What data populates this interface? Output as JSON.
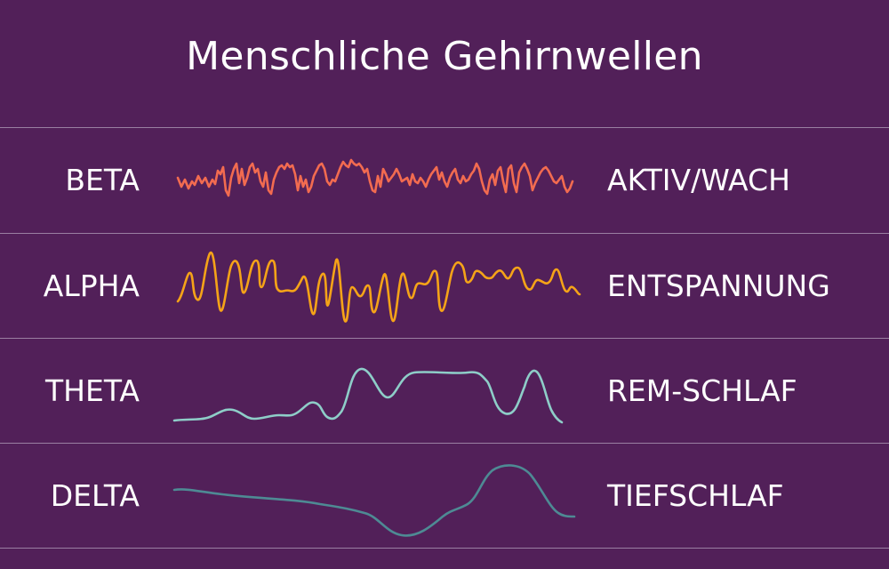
{
  "title": "Menschliche Gehirnwellen",
  "rows": [
    {
      "band": "BETA",
      "state": "AKTIV/WACH",
      "color": "#f26b50"
    },
    {
      "band": "ALPHA",
      "state": "ENTSPANNUNG",
      "color": "#f5a318"
    },
    {
      "band": "THETA",
      "state": "REM-SCHLAF",
      "color": "#8ecdc8"
    },
    {
      "band": "DELTA",
      "state": "TIEFSCHLAF",
      "color": "#4e8a94"
    }
  ],
  "colors": {
    "background": "#522059",
    "divider": "#9a7fa2",
    "text": "#ffffff"
  }
}
